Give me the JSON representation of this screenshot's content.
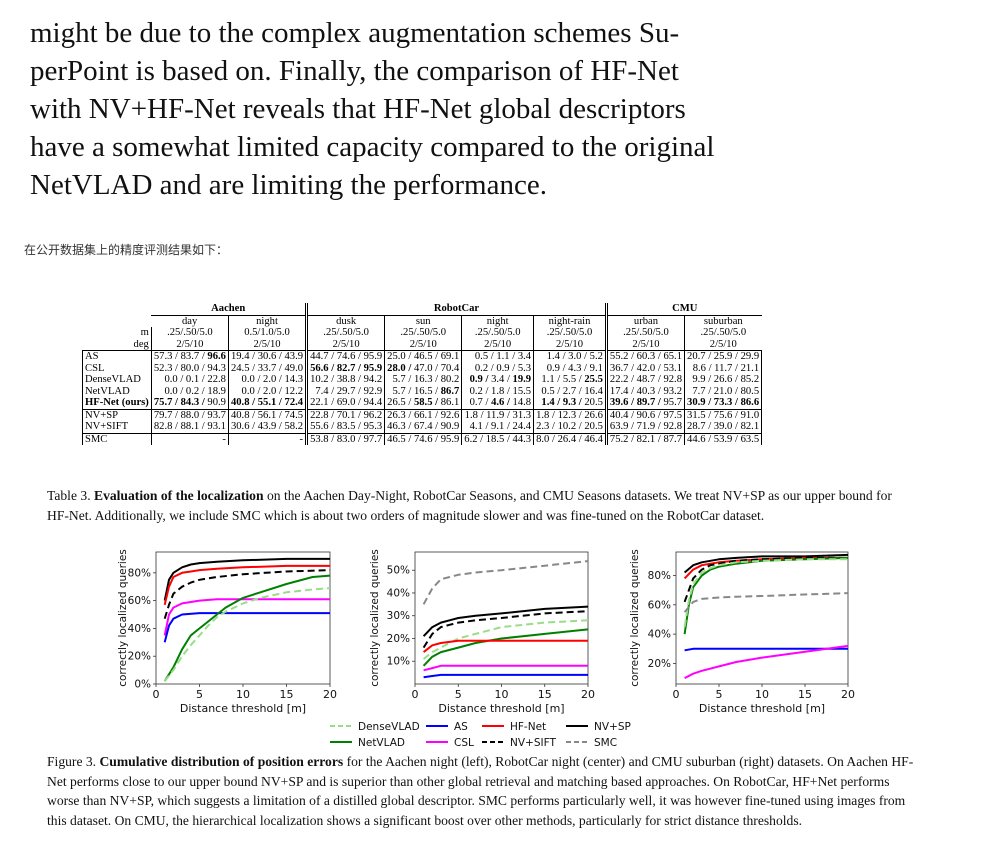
{
  "intro_lines": [
    "might be due to the complex augmentation schemes Su-",
    "perPoint is based on.  Finally, the comparison of HF-Net",
    "with NV+HF-Net reveals that HF-Net global descriptors",
    "have a somewhat limited capacity compared to the original",
    "NetVLAD and are limiting the performance."
  ],
  "chinese_note": "在公开数据集上的精度评测结果如下：",
  "table": {
    "groups": [
      "Aachen",
      "RobotCar",
      "CMU"
    ],
    "conditions": [
      "day",
      "night",
      "dusk",
      "sun",
      "night",
      "night-rain",
      "urban",
      "suburban"
    ],
    "m_label": "m",
    "deg_label": "deg",
    "m_values": [
      ".25/.50/5.0",
      "0.5/1.0/5.0",
      ".25/.50/5.0",
      ".25/.50/5.0",
      ".25/.50/5.0",
      ".25/.50/5.0",
      ".25/.50/5.0",
      ".25/.50/5.0"
    ],
    "deg_values": [
      "2/5/10",
      "2/5/10",
      "2/5/10",
      "2/5/10",
      "2/5/10",
      "2/5/10",
      "2/5/10",
      "2/5/10"
    ],
    "rows": [
      {
        "method": "AS",
        "cells": [
          "57.3 / 83.7 / 96.6",
          "19.4 / 30.6 / 43.9",
          "44.7 / 74.6 / 95.9",
          "25.0 / 46.5 / 69.1",
          "0.5 /  1.1 /  3.4",
          "1.4 /  3.0 /  5.2",
          "55.2 / 60.3 / 65.1",
          "20.7 / 25.9 / 29.9"
        ]
      },
      {
        "method": "CSL",
        "cells": [
          "52.3 / 80.0 / 94.3",
          "24.5 / 33.7 / 49.0",
          "56.6 / 82.7 / 95.9",
          "28.0 / 47.0 / 70.4",
          "0.2 /  0.9 /  5.3",
          "0.9 /  4.3 /  9.1",
          "36.7 / 42.0 / 53.1",
          "8.6 / 11.7 / 21.1"
        ]
      },
      {
        "method": "DenseVLAD",
        "cells": [
          "0.0 /  0.1 / 22.8",
          "0.0 /  2.0 / 14.3",
          "10.2 / 38.8 / 94.2",
          "5.7 / 16.3 / 80.2",
          "0.9 /  3.4 / 19.9",
          "1.1 /  5.5 / 25.5",
          "22.2 / 48.7 / 92.8",
          "9.9 / 26.6 / 85.2"
        ]
      },
      {
        "method": "NetVLAD",
        "cells": [
          "0.0 /  0.2 / 18.9",
          "0.0 /  2.0 / 12.2",
          "7.4 / 29.7 / 92.9",
          "5.7 / 16.5 / 86.7",
          "0.2 /  1.8 / 15.5",
          "0.5 /  2.7 / 16.4",
          "17.4 / 40.3 / 93.2",
          "7.7 / 21.0 / 80.5"
        ]
      },
      {
        "method": "HF-Net (ours)",
        "cells": [
          "75.7 / 84.3 / 90.9",
          "40.8 / 55.1 / 72.4",
          "22.1 / 69.0 / 94.4",
          "26.5 / 58.5 / 86.1",
          "0.7 /  4.6 / 14.8",
          "1.4 /  9.3 / 20.5",
          "39.6 / 89.7 / 95.7",
          "30.9 / 73.3 / 86.6"
        ]
      },
      {
        "method": "NV+SP",
        "cells": [
          "79.7 / 88.0 / 93.7",
          "40.8 / 56.1 / 74.5",
          "22.8 / 70.1 / 96.2",
          "26.3 / 66.1 / 92.6",
          "1.8 / 11.9 / 31.3",
          "1.8 / 12.3 / 26.6",
          "40.4 / 90.6 / 97.5",
          "31.5 / 75.6 / 91.0"
        ]
      },
      {
        "method": "NV+SIFT",
        "cells": [
          "82.8 / 88.1 / 93.1",
          "30.6 / 43.9 / 58.2",
          "55.6 / 83.5 / 95.3",
          "46.3 / 67.4 / 90.9",
          "4.1 /  9.1 / 24.4",
          "2.3 / 10.2 / 20.5",
          "63.9 / 71.9 / 92.8",
          "28.7 / 39.0 / 82.1"
        ]
      },
      {
        "method": "SMC",
        "cells": [
          "-",
          "-",
          "53.8 / 83.0 / 97.7",
          "46.5 / 74.6 / 95.9",
          "6.2 / 18.5 / 44.3",
          "8.0 / 26.4 / 46.4",
          "75.2 / 82.1 / 87.7",
          "44.6 / 53.9 / 63.5"
        ]
      }
    ]
  },
  "table_caption": {
    "prefix": "Table 3. ",
    "bold": "Evaluation of the localization",
    "text": " on the Aachen Day-Night, RobotCar Seasons, and CMU Seasons datasets. We treat NV+SP as our upper bound for HF-Net. Additionally, we include SMC which is about two orders of magnitude slower and was fine-tuned on the RobotCar dataset."
  },
  "figure": {
    "ylabel": "correctly localized queries",
    "xlabel": "Distance threshold [m]",
    "legend": [
      "DenseVLAD",
      "AS",
      "HF-Net",
      "NV+SP",
      "NetVLAD",
      "CSL",
      "NV+SIFT",
      "SMC"
    ]
  },
  "chart_data": [
    {
      "type": "line",
      "xlabel": "Distance threshold [m]",
      "ylabel": "correctly localized queries",
      "xlim": [
        0,
        20
      ],
      "ylim": [
        0,
        95
      ],
      "xticks": [
        "0",
        "5",
        "10",
        "15",
        "20"
      ],
      "yticks": [
        "0%",
        "20%",
        "40%",
        "60%",
        "80%"
      ],
      "ytick_values": [
        0,
        20,
        40,
        60,
        80
      ],
      "series": [
        {
          "name": "NV+SP",
          "color": "#000000",
          "dash": "solid",
          "x": [
            1,
            1.5,
            2,
            3,
            4,
            5,
            7,
            10,
            15,
            20
          ],
          "y": [
            60,
            75,
            80,
            84,
            86,
            87,
            88,
            89,
            90,
            90
          ]
        },
        {
          "name": "HF-Net",
          "color": "#ff0000",
          "dash": "solid",
          "x": [
            1,
            1.5,
            2,
            3,
            4,
            5,
            7,
            10,
            15,
            20
          ],
          "y": [
            57,
            70,
            77,
            80,
            81,
            82,
            83,
            84,
            85,
            85
          ]
        },
        {
          "name": "NV+SIFT",
          "color": "#000000",
          "dash": "dashed",
          "x": [
            1,
            1.5,
            2,
            3,
            4,
            5,
            7,
            10,
            15,
            20
          ],
          "y": [
            47,
            57,
            65,
            70,
            73,
            75,
            77,
            79,
            81,
            82
          ]
        },
        {
          "name": "CSL",
          "color": "#ff00ff",
          "dash": "solid",
          "x": [
            1,
            1.5,
            2,
            3,
            5,
            7,
            10,
            15,
            20
          ],
          "y": [
            35,
            50,
            55,
            58,
            60,
            61,
            61,
            61,
            61
          ]
        },
        {
          "name": "AS",
          "color": "#0000ff",
          "dash": "solid",
          "x": [
            1,
            1.5,
            2,
            3,
            5,
            10,
            15,
            20
          ],
          "y": [
            30,
            42,
            47,
            50,
            51,
            51,
            51,
            51
          ]
        },
        {
          "name": "NetVLAD",
          "color": "#008000",
          "dash": "solid",
          "x": [
            1,
            2,
            3,
            4,
            5,
            6,
            7,
            8,
            10,
            12,
            15,
            18,
            20
          ],
          "y": [
            2,
            12,
            25,
            35,
            40,
            45,
            50,
            55,
            62,
            66,
            72,
            77,
            78
          ]
        },
        {
          "name": "DenseVLAD",
          "color": "#99dd88",
          "dash": "dashed",
          "x": [
            1,
            2,
            3,
            4,
            5,
            6,
            7,
            8,
            10,
            12,
            15,
            18,
            20
          ],
          "y": [
            2,
            10,
            20,
            28,
            35,
            42,
            48,
            52,
            58,
            62,
            66,
            68,
            69
          ]
        }
      ]
    },
    {
      "type": "line",
      "xlabel": "Distance threshold [m]",
      "ylabel": "correctly localized queries",
      "xlim": [
        0,
        20
      ],
      "ylim": [
        0,
        58
      ],
      "xticks": [
        "0",
        "5",
        "10",
        "15",
        "20"
      ],
      "yticks": [
        "10%",
        "20%",
        "30%",
        "40%",
        "50%"
      ],
      "ytick_values": [
        10,
        20,
        30,
        40,
        50
      ],
      "series": [
        {
          "name": "SMC",
          "color": "#888888",
          "dash": "dashed",
          "x": [
            1,
            2,
            3,
            4,
            5,
            7,
            10,
            15,
            20
          ],
          "y": [
            35,
            42,
            46,
            47,
            48,
            49,
            50,
            52,
            54
          ]
        },
        {
          "name": "NV+SP",
          "color": "#000000",
          "dash": "solid",
          "x": [
            1,
            2,
            3,
            4,
            5,
            7,
            10,
            15,
            20
          ],
          "y": [
            21,
            25,
            27,
            28,
            29,
            30,
            31,
            33,
            34
          ]
        },
        {
          "name": "NV+SIFT",
          "color": "#000000",
          "dash": "dashed",
          "x": [
            1,
            2,
            3,
            4,
            5,
            7,
            10,
            15,
            20
          ],
          "y": [
            16,
            22,
            25,
            26,
            27,
            28,
            29,
            31,
            32
          ]
        },
        {
          "name": "DenseVLAD",
          "color": "#99dd88",
          "dash": "dashed",
          "x": [
            1,
            2,
            3,
            4,
            5,
            7,
            10,
            15,
            20
          ],
          "y": [
            11,
            14,
            16,
            18,
            20,
            22,
            25,
            27,
            28
          ]
        },
        {
          "name": "NetVLAD",
          "color": "#008000",
          "dash": "solid",
          "x": [
            1,
            2,
            3,
            4,
            5,
            7,
            10,
            15,
            20
          ],
          "y": [
            8,
            12,
            14,
            15,
            16,
            18,
            20,
            22,
            24
          ]
        },
        {
          "name": "HF-Net",
          "color": "#ff0000",
          "dash": "solid",
          "x": [
            1,
            2,
            3,
            4,
            5,
            7,
            10,
            15,
            20
          ],
          "y": [
            14,
            17,
            18,
            18.5,
            19,
            19,
            19,
            19,
            19
          ]
        },
        {
          "name": "CSL",
          "color": "#ff00ff",
          "dash": "solid",
          "x": [
            1,
            2,
            3,
            4,
            5,
            10,
            15,
            20
          ],
          "y": [
            6,
            7,
            8,
            8,
            8,
            8,
            8,
            8
          ]
        },
        {
          "name": "AS",
          "color": "#0000ff",
          "dash": "solid",
          "x": [
            1,
            2,
            3,
            5,
            10,
            15,
            20
          ],
          "y": [
            3,
            3.5,
            4,
            4,
            4,
            4,
            4
          ]
        }
      ]
    },
    {
      "type": "line",
      "xlabel": "Distance threshold [m]",
      "ylabel": "correctly localized queries",
      "xlim": [
        0,
        20
      ],
      "ylim": [
        6,
        96
      ],
      "xticks": [
        "0",
        "5",
        "10",
        "15",
        "20"
      ],
      "yticks": [
        "20%",
        "40%",
        "60%",
        "80%"
      ],
      "ytick_values": [
        20,
        40,
        60,
        80
      ],
      "series": [
        {
          "name": "NV+SP",
          "color": "#000000",
          "dash": "solid",
          "x": [
            1,
            2,
            3,
            4,
            5,
            7,
            10,
            15,
            20
          ],
          "y": [
            82,
            87,
            89,
            90,
            91,
            92,
            93,
            93,
            94
          ]
        },
        {
          "name": "HF-Net",
          "color": "#ff0000",
          "dash": "solid",
          "x": [
            1,
            2,
            3,
            4,
            5,
            7,
            10,
            15,
            20
          ],
          "y": [
            78,
            84,
            87,
            88,
            89,
            90,
            91,
            92,
            92
          ]
        },
        {
          "name": "NV+SIFT",
          "color": "#000000",
          "dash": "dashed",
          "x": [
            1,
            2,
            3,
            4,
            5,
            7,
            10,
            15,
            20
          ],
          "y": [
            62,
            78,
            84,
            87,
            88,
            90,
            91,
            92,
            92
          ]
        },
        {
          "name": "NetVLAD",
          "color": "#008000",
          "dash": "solid",
          "x": [
            1,
            1.5,
            2,
            3,
            4,
            5,
            7,
            10,
            15,
            20
          ],
          "y": [
            40,
            60,
            72,
            80,
            84,
            86,
            88,
            90,
            91,
            92
          ]
        },
        {
          "name": "DenseVLAD",
          "color": "#99dd88",
          "dash": "dashed",
          "x": [
            1,
            1.5,
            2,
            3,
            4,
            5,
            7,
            10,
            15,
            20
          ],
          "y": [
            45,
            63,
            74,
            82,
            85,
            87,
            89,
            90,
            91,
            91
          ]
        },
        {
          "name": "SMC",
          "color": "#888888",
          "dash": "dashed",
          "x": [
            1,
            2,
            3,
            5,
            7,
            10,
            15,
            20
          ],
          "y": [
            55,
            62,
            64,
            65,
            65.5,
            66,
            67,
            68
          ]
        },
        {
          "name": "AS",
          "color": "#0000ff",
          "dash": "solid",
          "x": [
            1,
            2,
            3,
            5,
            10,
            15,
            20
          ],
          "y": [
            29,
            30,
            30,
            30,
            30,
            30,
            30
          ]
        },
        {
          "name": "CSL",
          "color": "#ff00ff",
          "dash": "solid",
          "x": [
            1,
            2,
            3,
            5,
            7,
            10,
            15,
            20
          ],
          "y": [
            10,
            13,
            15,
            18,
            21,
            24,
            28,
            32
          ]
        }
      ]
    }
  ],
  "figure_caption": {
    "prefix": "Figure 3. ",
    "bold": "Cumulative distribution of position errors",
    "text": " for the Aachen night (left), RobotCar night (center) and CMU suburban (right) datasets. On Aachen HF-Net performs close to our upper bound NV+SP and is superior than other global retrieval and matching based approaches. On RobotCar, HF+Net performs worse than NV+SP, which suggests a limitation of a distilled global descriptor. SMC performs particularly well, it was however fine-tuned using images from this dataset. On CMU, the hierarchical localization shows a significant boost over other methods, particularly for strict distance thresholds."
  }
}
